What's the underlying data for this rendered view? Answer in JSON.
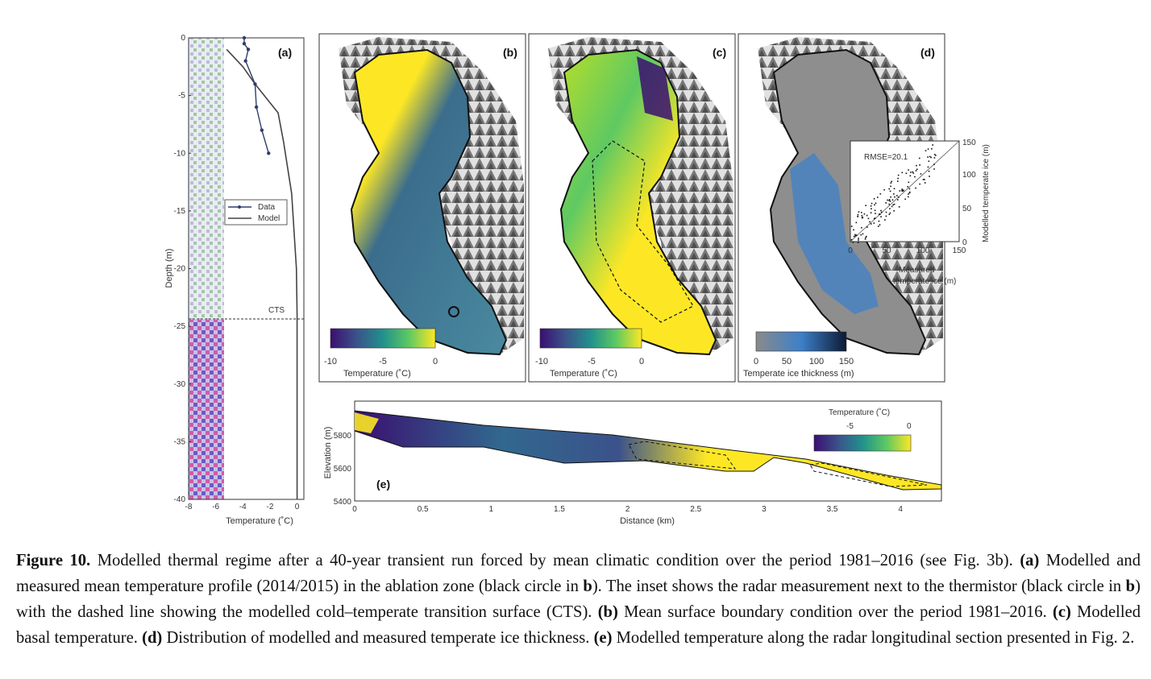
{
  "figure": {
    "panel_a": {
      "label": "(a)",
      "xlabel": "Temperature (˚C)",
      "ylabel": "Depth (m)",
      "xticks": [
        "-8",
        "-6",
        "-4",
        "-2",
        "0"
      ],
      "yticks": [
        "0",
        "-5",
        "-10",
        "-15",
        "-20",
        "-25",
        "-30",
        "-35",
        "-40"
      ],
      "cts_label": "CTS",
      "legend": [
        "Data",
        "Model"
      ]
    },
    "panel_b": {
      "label": "(b)",
      "colorbar_ticks": [
        "-10",
        "-5",
        "0"
      ],
      "colorbar_label": "Temperature (˚C)"
    },
    "panel_c": {
      "label": "(c)",
      "colorbar_ticks": [
        "-10",
        "-5",
        "0"
      ],
      "colorbar_label": "Temperature (˚C)"
    },
    "panel_d": {
      "label": "(d)",
      "colorbar_ticks": [
        "0",
        "50",
        "100",
        "150"
      ],
      "colorbar_label": "Temperate ice thickness (m)",
      "inset": {
        "rmse": "RMSE=20.1",
        "xticks": [
          "0",
          "50",
          "100",
          "150"
        ],
        "yticks": [
          "0",
          "50",
          "100",
          "150"
        ],
        "xlabel_line1": "Measured",
        "xlabel_line2": "temperate ice (m)",
        "ylabel": "Modelled temperate ice (m)"
      }
    },
    "panel_e": {
      "label": "(e)",
      "xlabel": "Distance (km)",
      "ylabel": "Elevation (m)",
      "xticks": [
        "0",
        "0.5",
        "1",
        "1.5",
        "2",
        "2.5",
        "3",
        "3.5",
        "4"
      ],
      "yticks": [
        "5400",
        "5600",
        "5800"
      ],
      "colorbar_title": "Temperature (˚C)",
      "colorbar_ticks": [
        "-5",
        "0"
      ]
    }
  },
  "chart_data": {
    "type": "line",
    "xlabel": "Temperature (˚C)",
    "ylabel": "Depth (m)",
    "xlim": [
      -8,
      0.5
    ],
    "ylim": [
      -40,
      0
    ],
    "series": [
      {
        "name": "Data",
        "points": [
          [
            -3.9,
            0
          ],
          [
            -3.9,
            -0.5
          ],
          [
            -3.6,
            -1
          ],
          [
            -3.8,
            -2
          ],
          [
            -3.1,
            -4
          ],
          [
            -3.0,
            -6
          ],
          [
            -2.6,
            -8
          ],
          [
            -2.1,
            -10
          ]
        ]
      },
      {
        "name": "Model",
        "points": [
          [
            -5.2,
            -1
          ],
          [
            -4.0,
            -2.5
          ],
          [
            -3.1,
            -4
          ],
          [
            -1.4,
            -6.5
          ],
          [
            -1.0,
            -9
          ],
          [
            -0.4,
            -13.5
          ],
          [
            -0.05,
            -20
          ],
          [
            0,
            -24
          ],
          [
            0,
            -40
          ]
        ]
      }
    ]
  },
  "caption": {
    "fig_label": "Figure 10.",
    "text": "Modelled thermal regime after a 40-year transient run forced by mean climatic condition over the period 1981–2016 (see Fig. 3b).",
    "a_label": "(a)",
    "a_text": "Modelled and measured mean temperature profile (2014/2015) in the ablation zone (black circle in",
    "a_b": "b",
    "a_text2": "). The inset shows the radar measurement next to the thermistor (black circle in",
    "a_b2": "b",
    "a_text3": ") with the dashed line showing the modelled cold–temperate transition surface (CTS).",
    "b_label": "(b)",
    "b_text": "Mean surface boundary condition over the period 1981–2016.",
    "c_label": "(c)",
    "c_text": "Modelled basal temperature.",
    "d_label": "(d)",
    "d_text": "Distribution of modelled and measured temperate ice thickness.",
    "e_label": "(e)",
    "e_text": "Modelled temperature along the radar longitudinal section presented in Fig. 2."
  }
}
